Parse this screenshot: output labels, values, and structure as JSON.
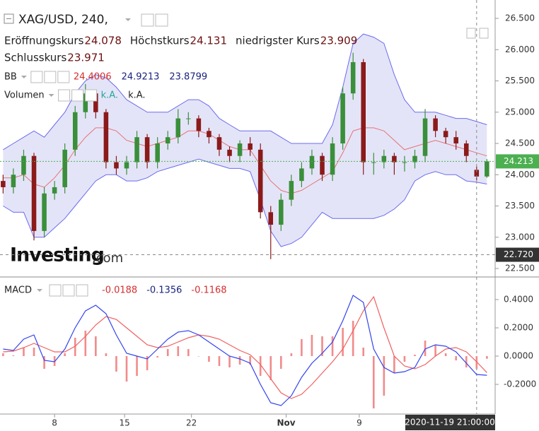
{
  "chart_data": [
    {
      "type": "candlestick",
      "title": "XAG/USD, 240,",
      "ohlc_legend": [
        {
          "label": "Eröffnungskurs",
          "value": 24.078
        },
        {
          "label": "Höchstkurs",
          "value": 24.131
        },
        {
          "label": "niedrigster Kurs",
          "value": 23.909
        },
        {
          "label": "Schlusskurs",
          "value": 23.971
        }
      ],
      "indicators": [
        {
          "name": "BB",
          "values": [
            24.4006,
            24.9213,
            23.8799
          ],
          "colors": [
            "#d32f2f",
            "#1a237e",
            "#1a237e"
          ]
        },
        {
          "name": "Volumen",
          "values": [
            "k.A.",
            "k.A."
          ],
          "colors": [
            "#26a69a",
            "#222222"
          ]
        }
      ],
      "watermark": [
        "Investing",
        ".com"
      ],
      "xlim": [
        -0.3,
        47.8
      ],
      "xticks": [
        {
          "value": 5,
          "label": "8"
        },
        {
          "value": 11.8,
          "label": "15"
        },
        {
          "value": 18.3,
          "label": "22"
        },
        {
          "value": 27.5,
          "label": "Nov"
        },
        {
          "value": 34.6,
          "label": "9"
        }
      ],
      "ylim": [
        22.387,
        26.794
      ],
      "yticks": [
        {
          "value": 26.5,
          "label": "26.500"
        },
        {
          "value": 26,
          "label": "26.000"
        },
        {
          "value": 25.5,
          "label": "25.500"
        },
        {
          "value": 25,
          "label": "25.000"
        },
        {
          "value": 24.5,
          "label": "24.500"
        },
        {
          "value": 24,
          "label": "24.000"
        },
        {
          "value": 23.5,
          "label": "23.500"
        },
        {
          "value": 23,
          "label": "23.000"
        },
        {
          "value": 22.5,
          "label": "22.500"
        }
      ],
      "up_color": "#3a8f3a",
      "down_color": "#8b1a1a",
      "open": [
        23.9,
        23.8,
        24.0,
        24.3,
        23.1,
        23.7,
        23.8,
        24.4,
        25.0,
        25.3,
        25.0,
        24.2,
        24.1,
        24.2,
        24.6,
        24.2,
        24.5,
        24.6,
        24.9,
        24.9,
        24.7,
        24.6,
        24.4,
        24.3,
        24.5,
        24.4,
        23.4,
        23.2,
        23.6,
        23.9,
        24.1,
        24.3,
        24.0,
        24.5,
        25.3,
        25.8,
        24.2,
        24.2,
        24.3,
        24.2,
        24.2,
        24.3,
        24.9,
        24.7,
        24.6,
        24.5,
        24.078,
        23.971
      ],
      "high": [
        24.0,
        24.1,
        24.4,
        24.35,
        23.8,
        23.9,
        24.5,
        25.1,
        25.45,
        25.35,
        25.05,
        24.3,
        24.3,
        24.7,
        24.65,
        24.6,
        24.7,
        25.05,
        25.0,
        24.95,
        24.75,
        24.65,
        24.45,
        24.55,
        24.6,
        24.5,
        23.5,
        23.7,
        24.0,
        24.2,
        24.4,
        24.35,
        24.6,
        25.4,
        25.95,
        25.85,
        24.35,
        24.4,
        24.35,
        24.3,
        24.4,
        25.05,
        24.95,
        24.75,
        24.7,
        24.55,
        24.131,
        24.25
      ],
      "low": [
        23.7,
        23.7,
        23.9,
        22.95,
        23.0,
        23.6,
        23.7,
        24.3,
        24.9,
        24.9,
        24.1,
        24.0,
        24.0,
        24.1,
        24.1,
        24.1,
        24.4,
        24.5,
        24.8,
        24.6,
        24.5,
        24.3,
        24.2,
        24.2,
        24.3,
        23.3,
        22.65,
        23.1,
        23.5,
        23.8,
        24.0,
        23.9,
        23.9,
        24.4,
        25.2,
        24.0,
        24.0,
        24.1,
        24.0,
        24.05,
        24.1,
        24.2,
        24.6,
        24.5,
        24.4,
        24.2,
        23.909,
        23.95
      ],
      "close": [
        23.8,
        24.0,
        24.3,
        23.1,
        23.7,
        23.8,
        24.4,
        25.0,
        25.3,
        25.0,
        24.2,
        24.1,
        24.2,
        24.6,
        24.2,
        24.5,
        24.6,
        24.9,
        24.9,
        24.7,
        24.6,
        24.4,
        24.3,
        24.5,
        24.4,
        23.4,
        23.2,
        23.6,
        23.9,
        24.1,
        24.3,
        24.0,
        24.5,
        25.3,
        25.8,
        24.2,
        24.2,
        24.3,
        24.2,
        24.2,
        24.3,
        24.9,
        24.7,
        24.6,
        24.5,
        24.3,
        23.971,
        24.213
      ],
      "bb": {
        "band_color": "#6b6bf0",
        "fill": "rgba(120,120,220,0.2)",
        "middle_color": "#e57373",
        "upper": [
          24.4,
          24.5,
          24.6,
          24.7,
          24.6,
          24.8,
          25.0,
          25.3,
          25.5,
          25.6,
          25.55,
          25.4,
          25.2,
          25.1,
          25.0,
          25.0,
          25.0,
          25.1,
          25.2,
          25.2,
          25.1,
          24.9,
          24.8,
          24.7,
          24.7,
          24.7,
          24.7,
          24.6,
          24.5,
          24.5,
          24.5,
          24.5,
          24.8,
          25.4,
          26.1,
          26.25,
          26.2,
          26.1,
          25.6,
          25.2,
          25.0,
          25.0,
          25.0,
          24.95,
          24.9,
          24.9,
          24.85,
          24.8
        ],
        "middle": [
          23.95,
          23.95,
          24.0,
          23.85,
          23.8,
          23.95,
          24.15,
          24.4,
          24.6,
          24.75,
          24.75,
          24.7,
          24.55,
          24.5,
          24.45,
          24.5,
          24.55,
          24.6,
          24.7,
          24.7,
          24.65,
          24.55,
          24.45,
          24.4,
          24.4,
          24.15,
          23.9,
          23.75,
          23.7,
          23.75,
          23.85,
          23.95,
          24.05,
          24.35,
          24.7,
          24.75,
          24.75,
          24.7,
          24.55,
          24.4,
          24.45,
          24.5,
          24.55,
          24.5,
          24.45,
          24.4,
          24.35,
          24.3
        ],
        "lower": [
          23.5,
          23.4,
          23.4,
          23.0,
          23.0,
          23.15,
          23.3,
          23.5,
          23.7,
          23.9,
          24.0,
          24.0,
          23.9,
          23.9,
          23.95,
          24.05,
          24.1,
          24.15,
          24.2,
          24.25,
          24.2,
          24.15,
          24.1,
          24.1,
          24.05,
          23.6,
          23.1,
          22.85,
          22.9,
          23.0,
          23.2,
          23.4,
          23.3,
          23.3,
          23.3,
          23.3,
          23.3,
          23.35,
          23.45,
          23.6,
          23.9,
          24.0,
          24.05,
          24.0,
          24.0,
          23.9,
          23.88,
          23.85
        ]
      },
      "last_price": {
        "value": 24.213,
        "color": "#4caf50"
      },
      "crosshair": {
        "price": {
          "value": 22.72,
          "label": "22.720"
        },
        "time": "2020-11-19 21:00:00"
      }
    },
    {
      "type": "macd",
      "title": "MACD",
      "legend_values": [
        {
          "value": -0.0188,
          "color": "#d32f2f"
        },
        {
          "value": -0.1356,
          "color": "#1a237e"
        },
        {
          "value": -0.1168,
          "color": "#d32f2f"
        }
      ],
      "ylim": [
        -0.405,
        0.555
      ],
      "yticks": [
        {
          "value": 0.4,
          "label": "0.4000"
        },
        {
          "value": 0.2,
          "label": "0.2000"
        },
        {
          "value": 0,
          "label": "0.0000"
        },
        {
          "value": -0.2,
          "label": "-0.2000"
        }
      ],
      "series": [
        {
          "name": "MACD",
          "color": "#3344ee",
          "values": [
            0.05,
            0.04,
            0.12,
            0.15,
            -0.03,
            -0.04,
            0.05,
            0.2,
            0.32,
            0.36,
            0.3,
            0.15,
            0.02,
            0.0,
            -0.02,
            0.05,
            0.12,
            0.17,
            0.18,
            0.15,
            0.1,
            0.05,
            0.0,
            -0.02,
            -0.05,
            -0.2,
            -0.33,
            -0.35,
            -0.28,
            -0.15,
            -0.05,
            0.02,
            0.1,
            0.25,
            0.43,
            0.38,
            0.05,
            -0.08,
            -0.12,
            -0.11,
            -0.08,
            0.05,
            0.08,
            0.07,
            0.03,
            -0.05,
            -0.13,
            -0.1356
          ]
        },
        {
          "name": "Signal",
          "color": "#f06060",
          "values": [
            0.03,
            0.035,
            0.06,
            0.09,
            0.06,
            0.03,
            0.03,
            0.07,
            0.14,
            0.22,
            0.28,
            0.26,
            0.2,
            0.14,
            0.08,
            0.06,
            0.07,
            0.1,
            0.13,
            0.15,
            0.14,
            0.12,
            0.08,
            0.04,
            0.01,
            -0.06,
            -0.16,
            -0.26,
            -0.3,
            -0.27,
            -0.2,
            -0.12,
            -0.04,
            0.05,
            0.18,
            0.32,
            0.42,
            0.2,
            0.0,
            -0.07,
            -0.09,
            -0.06,
            0.0,
            0.05,
            0.06,
            0.03,
            -0.04,
            -0.1168
          ]
        }
      ],
      "histogram": {
        "color": "#f28b8b",
        "values": [
          0.02,
          0.005,
          0.06,
          0.06,
          -0.09,
          -0.07,
          0.02,
          0.13,
          0.18,
          0.14,
          0.02,
          -0.11,
          -0.18,
          -0.14,
          -0.1,
          -0.01,
          0.05,
          0.07,
          0.05,
          0.0,
          -0.04,
          -0.07,
          -0.08,
          -0.06,
          -0.06,
          -0.14,
          -0.17,
          -0.09,
          0.02,
          0.12,
          0.15,
          0.14,
          0.14,
          0.2,
          0.25,
          0.06,
          -0.37,
          -0.28,
          -0.12,
          -0.04,
          0.01,
          0.11,
          0.08,
          0.02,
          -0.03,
          -0.08,
          -0.09,
          -0.0188
        ]
      }
    }
  ]
}
